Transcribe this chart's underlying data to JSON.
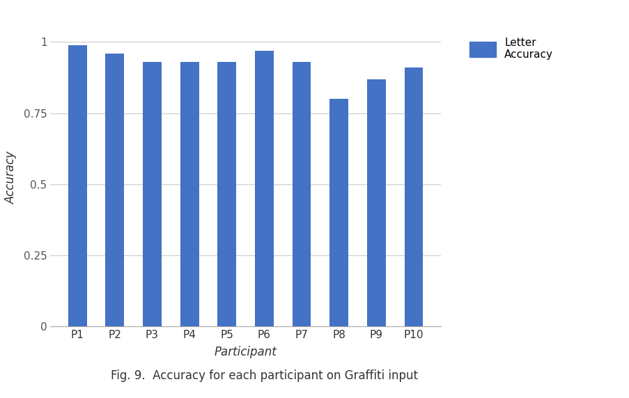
{
  "categories": [
    "P1",
    "P2",
    "P3",
    "P4",
    "P5",
    "P6",
    "P7",
    "P8",
    "P9",
    "P10"
  ],
  "values": [
    0.99,
    0.96,
    0.93,
    0.93,
    0.93,
    0.97,
    0.93,
    0.8,
    0.87,
    0.91
  ],
  "bar_color": "#4472C4",
  "ylabel": "Accuracy",
  "xlabel": "Participant",
  "ylim": [
    0,
    1.05
  ],
  "yticks": [
    0,
    0.25,
    0.5,
    0.75,
    1
  ],
  "ytick_labels": [
    "0",
    "0.25",
    "0.5",
    "0.75",
    "1"
  ],
  "legend_label": "Letter\nAccuracy",
  "grid_color": "#cccccc",
  "background_color": "#ffffff",
  "caption": "Fig. 9.  Accuracy for each participant on Graffiti input",
  "bar_width": 0.5,
  "axis_label_fontsize": 12,
  "tick_fontsize": 11,
  "legend_fontsize": 11,
  "caption_fontsize": 12
}
